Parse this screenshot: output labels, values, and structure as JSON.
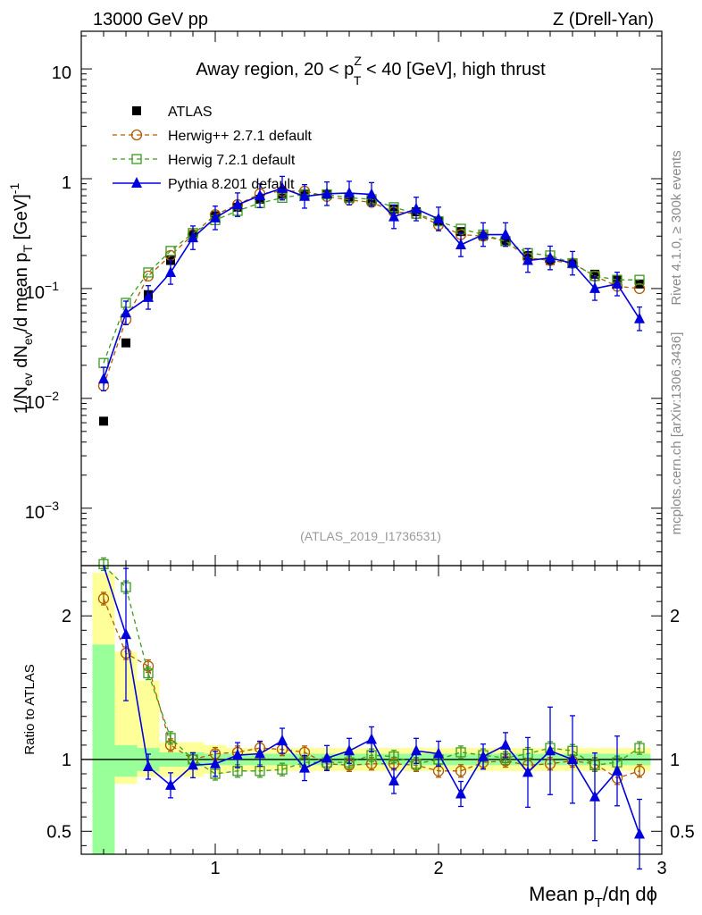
{
  "header": {
    "left": "13000 GeV pp",
    "right": "Z (Drell-Yan)"
  },
  "side_labels": {
    "rivet": "Rivet 4.1.0, ≥ 300k events",
    "mcplots": "mcplots.cern.ch [arXiv:1306.3436]"
  },
  "colors": {
    "atlas": "#000000",
    "herwigpp": "#b05a00",
    "herwig7": "#3c9b1e",
    "pythia": "#0000dd",
    "band_yellow": "#ffff99",
    "band_green": "#99ff99"
  },
  "chart_data": [
    {
      "type": "scatter",
      "title": "Away region, 20 < pT^Z < 40 [GeV], high thrust",
      "title_parts": {
        "before": "Away region, 20 < p",
        "sup": "Z",
        "sub": "T",
        "after": " < 40 [GeV], high thrust"
      },
      "ylabel": "1/N_ev dN_ev/d mean p_T [GeV]^-1",
      "ylabel_parts": [
        "1/N",
        "ev",
        " dN",
        "ev",
        "/d mean p",
        "T",
        " [GeV]",
        "-1"
      ],
      "yscale": "log",
      "xlim": [
        0.4,
        3.0
      ],
      "ylim": [
        0.0003,
        22
      ],
      "ytick_labels": [
        "10",
        "1",
        "10^-1",
        "10^-2",
        "10^-3"
      ],
      "watermark": "(ATLAS_2019_I1736531)",
      "legend_position": "top-left",
      "x": [
        0.5,
        0.6,
        0.7,
        0.8,
        0.9,
        1.0,
        1.1,
        1.2,
        1.3,
        1.4,
        1.5,
        1.6,
        1.7,
        1.8,
        1.9,
        2.0,
        2.1,
        2.2,
        2.3,
        2.4,
        2.5,
        2.6,
        2.7,
        2.8,
        2.9
      ],
      "series": [
        {
          "name": "ATLAS",
          "style": "data",
          "values": [
            0.0062,
            0.032,
            0.088,
            0.18,
            0.31,
            0.46,
            0.55,
            0.65,
            0.72,
            0.73,
            0.72,
            0.68,
            0.63,
            0.53,
            0.5,
            0.41,
            0.33,
            0.3,
            0.27,
            0.2,
            0.18,
            0.17,
            0.135,
            0.12,
            0.11
          ]
        },
        {
          "name": "Herwig++ 2.7.1 default",
          "style": "circle-dashed",
          "values": [
            0.013,
            0.052,
            0.13,
            0.2,
            0.31,
            0.47,
            0.58,
            0.73,
            0.77,
            0.77,
            0.69,
            0.64,
            0.61,
            0.5,
            0.48,
            0.38,
            0.31,
            0.3,
            0.27,
            0.19,
            0.18,
            0.17,
            0.13,
            0.105,
            0.1
          ]
        },
        {
          "name": "Herwig 7.2.1 default",
          "style": "square-dashed",
          "values": [
            0.021,
            0.074,
            0.14,
            0.22,
            0.32,
            0.42,
            0.51,
            0.6,
            0.67,
            0.72,
            0.72,
            0.67,
            0.65,
            0.55,
            0.48,
            0.41,
            0.35,
            0.31,
            0.27,
            0.21,
            0.2,
            0.17,
            0.13,
            0.12,
            0.12
          ]
        },
        {
          "name": "Pythia 8.201 default",
          "style": "triangle-solid",
          "values": [
            0.015,
            0.06,
            0.083,
            0.14,
            0.29,
            0.44,
            0.58,
            0.7,
            0.82,
            0.69,
            0.73,
            0.74,
            0.72,
            0.45,
            0.53,
            0.43,
            0.25,
            0.31,
            0.31,
            0.18,
            0.19,
            0.17,
            0.1,
            0.11,
            0.053
          ]
        }
      ]
    },
    {
      "type": "scatter",
      "ylabel": "Ratio to ATLAS",
      "xlabel": "Mean p_T/dη dϕ",
      "xlabel_parts": {
        "before": "Mean p",
        "sub": "T",
        "after": "/dη dϕ"
      },
      "xlim": [
        0.4,
        3.0
      ],
      "ylim": [
        0.34,
        2.35
      ],
      "yticks": [
        0.5,
        1,
        2
      ],
      "ytick_labels": [
        "0.5",
        "1",
        "2"
      ],
      "xticks": [
        1,
        2,
        3
      ],
      "xtick_labels": [
        "1",
        "2",
        "3"
      ],
      "reference_line": 1.0,
      "bands": {
        "yellow": [
          [
            1.5,
            2.3
          ],
          [
            0.83,
            1.75
          ],
          [
            0.88,
            1.55
          ],
          [
            0.88,
            1.12
          ],
          [
            0.88,
            1.12
          ],
          [
            0.9,
            1.1
          ],
          [
            0.92,
            1.08
          ],
          [
            0.92,
            1.08
          ],
          [
            0.92,
            1.08
          ],
          [
            0.92,
            1.08
          ],
          [
            0.92,
            1.08
          ],
          [
            0.92,
            1.08
          ],
          [
            0.92,
            1.08
          ],
          [
            0.92,
            1.08
          ],
          [
            0.92,
            1.08
          ],
          [
            0.92,
            1.08
          ],
          [
            0.92,
            1.08
          ],
          [
            0.92,
            1.08
          ],
          [
            0.92,
            1.08
          ],
          [
            0.92,
            1.08
          ],
          [
            0.92,
            1.08
          ],
          [
            0.92,
            1.08
          ],
          [
            0.92,
            1.08
          ],
          [
            0.92,
            1.08
          ],
          [
            0.92,
            1.08
          ]
        ],
        "green": [
          [
            0.2,
            1.8
          ],
          [
            0.88,
            1.1
          ],
          [
            0.92,
            1.08
          ],
          [
            0.95,
            1.05
          ],
          [
            0.95,
            1.05
          ],
          [
            0.96,
            1.04
          ],
          [
            0.96,
            1.04
          ],
          [
            0.96,
            1.04
          ],
          [
            0.96,
            1.04
          ],
          [
            0.96,
            1.04
          ],
          [
            0.96,
            1.04
          ],
          [
            0.96,
            1.04
          ],
          [
            0.96,
            1.04
          ],
          [
            0.96,
            1.04
          ],
          [
            0.96,
            1.04
          ],
          [
            0.96,
            1.04
          ],
          [
            0.96,
            1.04
          ],
          [
            0.96,
            1.04
          ],
          [
            0.96,
            1.04
          ],
          [
            0.96,
            1.04
          ],
          [
            0.96,
            1.04
          ],
          [
            0.96,
            1.04
          ],
          [
            0.96,
            1.04
          ],
          [
            0.96,
            1.04
          ],
          [
            0.96,
            1.04
          ]
        ]
      },
      "x": [
        0.5,
        0.6,
        0.7,
        0.8,
        0.9,
        1.0,
        1.1,
        1.2,
        1.3,
        1.4,
        1.5,
        1.6,
        1.7,
        1.8,
        1.9,
        2.0,
        2.1,
        2.2,
        2.3,
        2.4,
        2.5,
        2.6,
        2.7,
        2.8,
        2.9
      ],
      "series": [
        {
          "name": "Herwig++ 2.7.1 default",
          "style": "circle-dashed",
          "values": [
            2.12,
            1.74,
            1.65,
            1.1,
            1.0,
            1.04,
            1.05,
            1.08,
            1.07,
            1.05,
            0.97,
            0.96,
            0.97,
            0.97,
            0.96,
            0.92,
            0.92,
            0.98,
            0.99,
            0.96,
            0.97,
            0.99,
            0.97,
            0.87,
            0.92
          ]
        },
        {
          "name": "Herwig 7.2.1 default",
          "style": "square-dashed",
          "values": [
            2.36,
            2.2,
            1.6,
            1.15,
            1.0,
            0.9,
            0.92,
            0.92,
            0.93,
            0.98,
            0.98,
            0.98,
            1.03,
            1.02,
            0.97,
            1.0,
            1.05,
            1.03,
            1.01,
            1.04,
            1.08,
            1.06,
            0.96,
            0.98,
            1.08
          ]
        },
        {
          "name": "Pythia 8.201 default",
          "style": "triangle-solid",
          "values": [
            2.38,
            1.87,
            0.95,
            0.82,
            0.96,
            0.97,
            1.03,
            1.04,
            1.13,
            0.94,
            1.01,
            1.06,
            1.14,
            0.85,
            1.06,
            1.04,
            0.76,
            1.02,
            1.1,
            0.91,
            1.06,
            1.0,
            0.74,
            0.92,
            0.48
          ]
        }
      ]
    }
  ]
}
